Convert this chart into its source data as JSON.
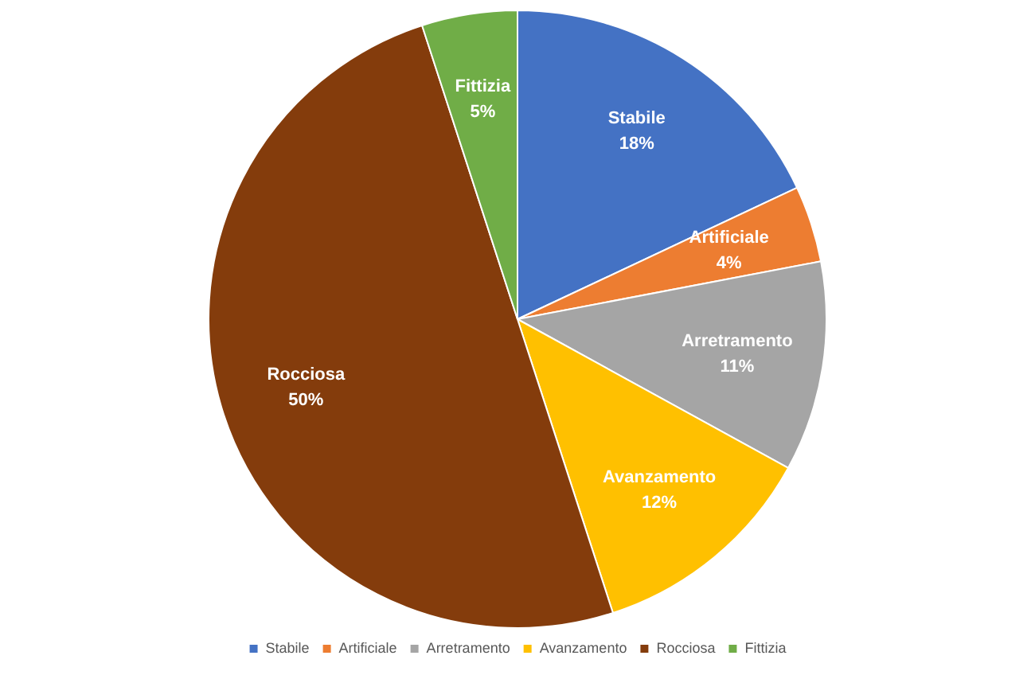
{
  "chart_data": {
    "type": "pie",
    "categories": [
      "Stabile",
      "Artificiale",
      "Arretramento",
      "Avanzamento",
      "Rocciosa",
      "Fittizia"
    ],
    "values": [
      18,
      4,
      11,
      12,
      50,
      5
    ],
    "colors": [
      "#4472c4",
      "#ed7d31",
      "#a5a5a5",
      "#ffc000",
      "#843c0c",
      "#70ad47"
    ],
    "value_labels": [
      "18%",
      "4%",
      "11%",
      "12%",
      "50%",
      "5%"
    ],
    "legend": "bottom"
  }
}
